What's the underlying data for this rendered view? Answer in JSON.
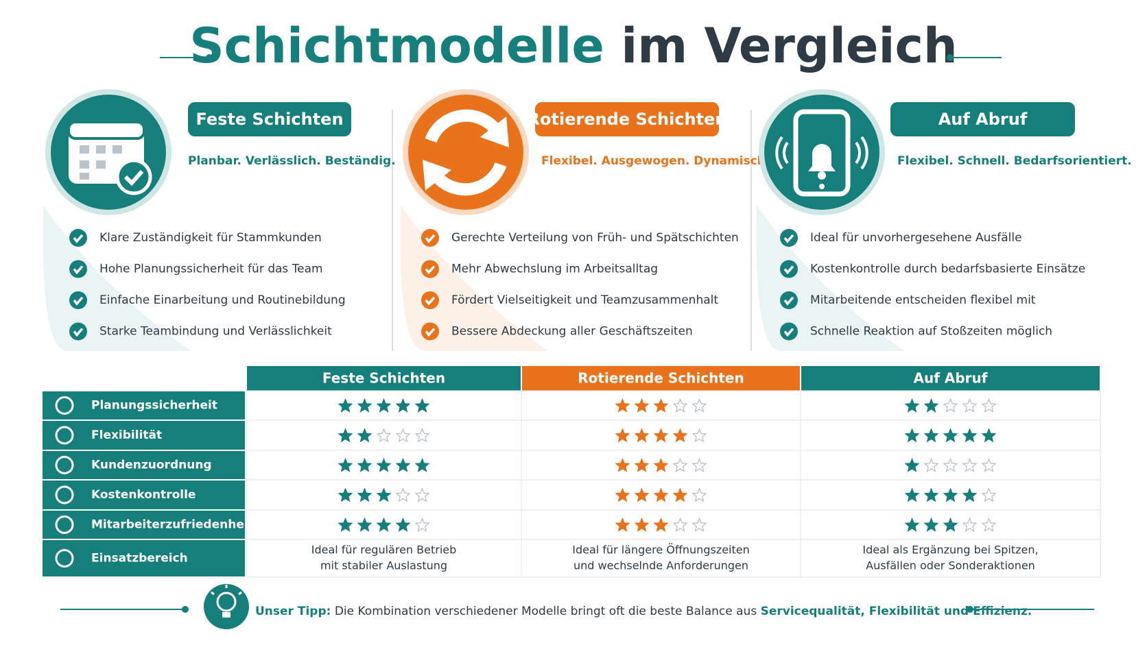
{
  "title": {
    "part1": "Schichtmodelle",
    "part2": "im Vergleich"
  },
  "models": [
    {
      "name": "Feste Schichten",
      "color": "#167f7c",
      "tagline": "Planbar. Verlässlich. Beständig.",
      "points": [
        "Klare Zuständigkeit für Stammkunden",
        "Hohe Planungssicherheit für das Team",
        "Einfache Einarbeitung und Routinebildung",
        "Starke Teambindung und Verlässlichkeit"
      ],
      "einsatzbereich": [
        "Ideal für regulären Betrieb",
        "mit stabiler Auslastung"
      ]
    },
    {
      "name": "Rotierende Schichten",
      "color": "#e8731c",
      "tagline": "Flexibel. Ausgewogen. Dynamisch.",
      "points": [
        "Gerechte Verteilung von Früh- und Spätschichten",
        "Mehr Abwechslung im Arbeitsalltag",
        "Fördert Vielseitigkeit und Teamzusammenhalt",
        "Bessere Abdeckung aller Geschäftszeiten"
      ],
      "einsatzbereich": [
        "Ideal für längere Öffnungszeiten",
        "und wechselnde Anforderungen"
      ]
    },
    {
      "name": "Auf Abruf",
      "color": "#167f7c",
      "tagline": "Flexibel. Schnell. Bedarfsorientiert.",
      "points": [
        "Ideal für unvorhergesehene Ausfälle",
        "Kostenkontrolle durch bedarfsbasierte Einsätze",
        "Mitarbeitende entscheiden flexibel mit",
        "Schnelle Reaktion auf Stoßzeiten möglich"
      ],
      "einsatzbereich": [
        "Ideal als Ergänzung bei Spitzen,",
        "Ausfällen oder Sonderaktionen"
      ]
    }
  ],
  "table": {
    "rating_max": 5,
    "criteria": [
      {
        "name": "Planungssicherheit",
        "ratings": [
          5,
          3,
          2
        ]
      },
      {
        "name": "Flexibilität",
        "ratings": [
          2,
          4,
          5
        ]
      },
      {
        "name": "Kundenzuordnung",
        "ratings": [
          5,
          3,
          1
        ]
      },
      {
        "name": "Kostenkontrolle",
        "ratings": [
          3,
          4,
          4
        ]
      },
      {
        "name": "Mitarbeiterzufriedenheit",
        "ratings": [
          4,
          3,
          3
        ]
      }
    ],
    "einsatzbereich_label": "Einsatzbereich"
  },
  "tip": {
    "label": "Unser Tipp:",
    "text": "Die Kombination verschiedener Modelle bringt oft die beste Balance aus",
    "highlight": "Servicequalität, Flexibilität und Effizienz."
  }
}
